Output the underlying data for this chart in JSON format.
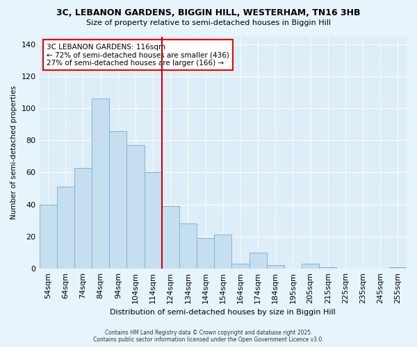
{
  "title1": "3C, LEBANON GARDENS, BIGGIN HILL, WESTERHAM, TN16 3HB",
  "title2": "Size of property relative to semi-detached houses in Biggin Hill",
  "xlabel": "Distribution of semi-detached houses by size in Biggin Hill",
  "ylabel": "Number of semi-detached properties",
  "bar_labels": [
    "54sqm",
    "64sqm",
    "74sqm",
    "84sqm",
    "94sqm",
    "104sqm",
    "114sqm",
    "124sqm",
    "134sqm",
    "144sqm",
    "154sqm",
    "164sqm",
    "174sqm",
    "184sqm",
    "195sqm",
    "205sqm",
    "215sqm",
    "225sqm",
    "235sqm",
    "245sqm",
    "255sqm"
  ],
  "bar_values": [
    40,
    51,
    63,
    106,
    86,
    77,
    60,
    39,
    28,
    19,
    21,
    3,
    10,
    2,
    0,
    3,
    1,
    0,
    0,
    0,
    1
  ],
  "bar_color": "#c5dff0",
  "bar_edge_color": "#7eb5d4",
  "vline_color": "#cc0000",
  "annotation_title": "3C LEBANON GARDENS: 116sqm",
  "annotation_line1": "← 72% of semi-detached houses are smaller (436)",
  "annotation_line2": "27% of semi-detached houses are larger (166) →",
  "ylim": [
    0,
    145
  ],
  "yticks": [
    0,
    20,
    40,
    60,
    80,
    100,
    120,
    140
  ],
  "footer1": "Contains HM Land Registry data © Crown copyright and database right 2025.",
  "footer2": "Contains public sector information licensed under the Open Government Licence v3.0.",
  "bg_color": "#e8f4fb",
  "plot_bg_color": "#ddeef8",
  "grid_color": "#ffffff"
}
